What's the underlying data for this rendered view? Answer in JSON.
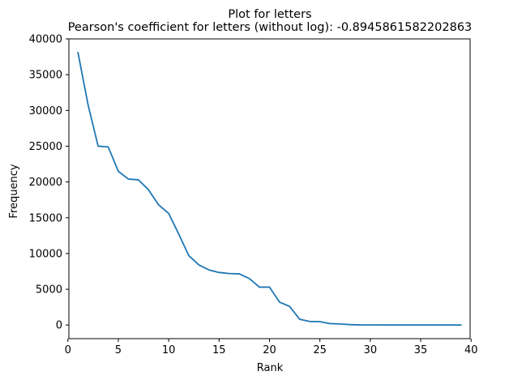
{
  "chart_data": {
    "type": "line",
    "title": "Plot for letters",
    "subtitle": "Pearson's coefficient for letters (without log): -0.8945861582202863",
    "xlabel": "Rank",
    "ylabel": "Frequency",
    "xlim": [
      0.1,
      39.9
    ],
    "ylim": [
      -1900,
      40000
    ],
    "xticks": [
      0,
      5,
      10,
      15,
      20,
      25,
      30,
      35,
      40
    ],
    "yticks": [
      0,
      5000,
      10000,
      15000,
      20000,
      25000,
      30000,
      35000,
      40000
    ],
    "grid": false,
    "series": [
      {
        "color": "#1f77b4",
        "x": [
          1,
          2,
          3,
          4,
          5,
          6,
          7,
          8,
          9,
          10,
          11,
          12,
          13,
          14,
          15,
          16,
          17,
          18,
          19,
          20,
          21,
          22,
          23,
          24,
          25,
          26,
          27,
          28,
          29,
          30,
          31,
          32,
          33,
          34,
          35,
          36,
          37,
          38,
          39
        ],
        "y": [
          38100,
          30800,
          25000,
          24900,
          21500,
          20400,
          20300,
          18900,
          16800,
          15600,
          12700,
          9700,
          8400,
          7700,
          7350,
          7200,
          7150,
          6500,
          5300,
          5300,
          3200,
          2600,
          800,
          500,
          480,
          200,
          150,
          60,
          20,
          10,
          8,
          5,
          4,
          3,
          2,
          2,
          1,
          1,
          1
        ]
      }
    ]
  }
}
